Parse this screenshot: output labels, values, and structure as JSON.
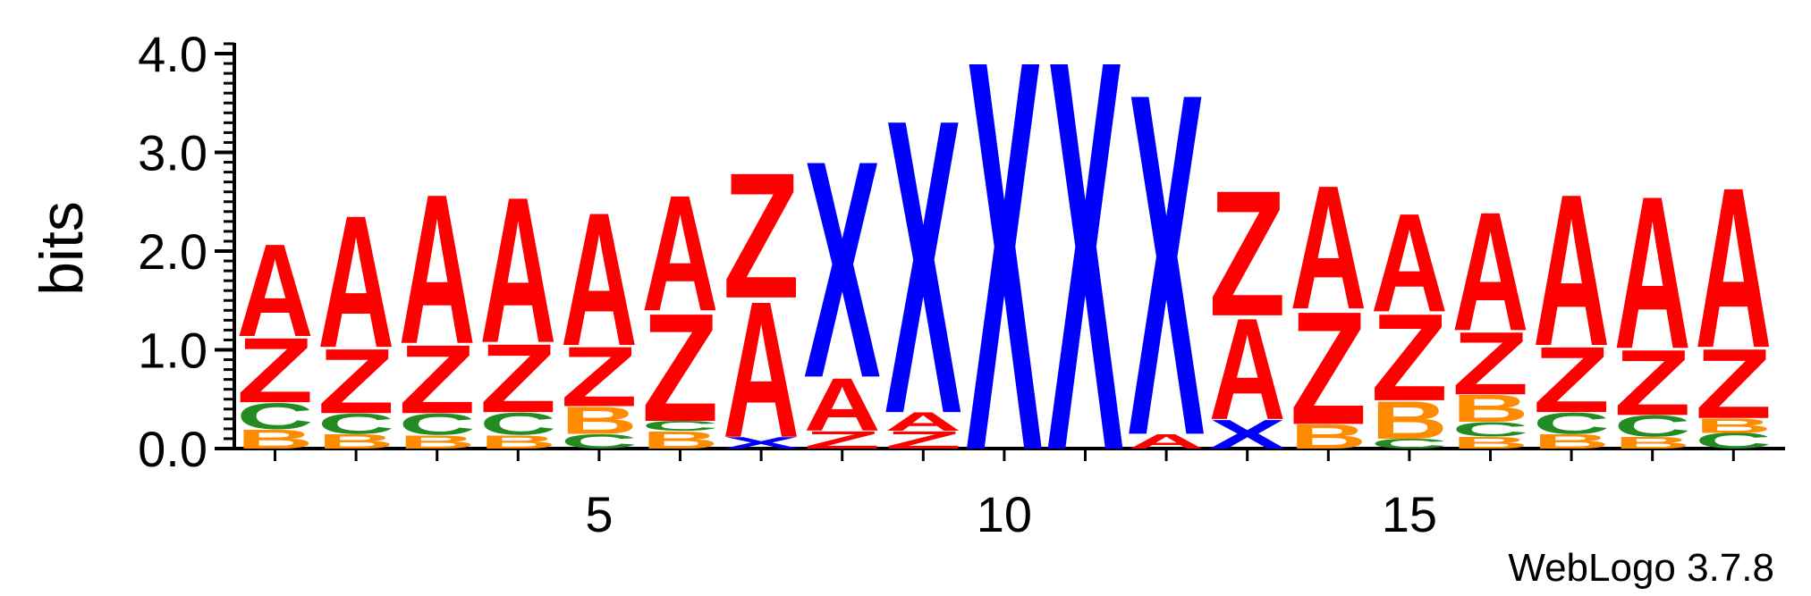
{
  "chart_data": {
    "type": "sequence-logo",
    "ylabel": "bits",
    "ylim": [
      0,
      4.0
    ],
    "y_ticks": [
      "0.0",
      "1.0",
      "2.0",
      "3.0",
      "4.0"
    ],
    "x_ticks": [
      "5",
      "10",
      "15"
    ],
    "x_tick_positions": [
      5,
      10,
      15
    ],
    "position_range": [
      1,
      19
    ],
    "colors": {
      "A": "#ff0000",
      "Z": "#ff0000",
      "X": "#0000ff",
      "C": "#228b22",
      "B": "#ff8c00"
    },
    "positions": [
      {
        "pos": 1,
        "stack": [
          [
            "B",
            0.2
          ],
          [
            "C",
            0.27
          ],
          [
            "Z",
            0.67
          ],
          [
            "A",
            0.96
          ]
        ]
      },
      {
        "pos": 2,
        "stack": [
          [
            "B",
            0.15
          ],
          [
            "C",
            0.21
          ],
          [
            "Z",
            0.67
          ],
          [
            "A",
            1.37
          ]
        ]
      },
      {
        "pos": 3,
        "stack": [
          [
            "B",
            0.14
          ],
          [
            "C",
            0.22
          ],
          [
            "Z",
            0.71
          ],
          [
            "A",
            1.55
          ]
        ]
      },
      {
        "pos": 4,
        "stack": [
          [
            "B",
            0.14
          ],
          [
            "C",
            0.23
          ],
          [
            "Z",
            0.71
          ],
          [
            "A",
            1.51
          ]
        ]
      },
      {
        "pos": 5,
        "stack": [
          [
            "C",
            0.15
          ],
          [
            "B",
            0.28
          ],
          [
            "Z",
            0.62
          ],
          [
            "A",
            1.38
          ]
        ]
      },
      {
        "pos": 6,
        "stack": [
          [
            "B",
            0.18
          ],
          [
            "C",
            0.1
          ],
          [
            "Z",
            1.12
          ],
          [
            "A",
            1.2
          ]
        ]
      },
      {
        "pos": 7,
        "stack": [
          [
            "X",
            0.12
          ],
          [
            "A",
            1.41
          ],
          [
            "Z",
            1.3
          ]
        ]
      },
      {
        "pos": 8,
        "stack": [
          [
            "Z",
            0.18
          ],
          [
            "A",
            0.55
          ],
          [
            "X",
            2.25
          ]
        ]
      },
      {
        "pos": 9,
        "stack": [
          [
            "Z",
            0.18
          ],
          [
            "A",
            0.19
          ],
          [
            "X",
            3.05
          ]
        ]
      },
      {
        "pos": 10,
        "stack": [
          [
            "X",
            4.05
          ]
        ]
      },
      {
        "pos": 11,
        "stack": [
          [
            "X",
            4.05
          ]
        ]
      },
      {
        "pos": 12,
        "stack": [
          [
            "A",
            0.15
          ],
          [
            "X",
            3.55
          ]
        ]
      },
      {
        "pos": 13,
        "stack": [
          [
            "X",
            0.3
          ],
          [
            "A",
            1.05
          ],
          [
            "Z",
            1.3
          ]
        ]
      },
      {
        "pos": 14,
        "stack": [
          [
            "B",
            0.25
          ],
          [
            "Z",
            1.17
          ],
          [
            "A",
            1.28
          ]
        ]
      },
      {
        "pos": 15,
        "stack": [
          [
            "C",
            0.1
          ],
          [
            "B",
            0.39
          ],
          [
            "Z",
            0.9
          ],
          [
            "A",
            1.02
          ]
        ]
      },
      {
        "pos": 16,
        "stack": [
          [
            "B",
            0.12
          ],
          [
            "C",
            0.15
          ],
          [
            "B",
            0.28
          ],
          [
            "Z",
            0.65
          ],
          [
            "A",
            1.23
          ]
        ]
      },
      {
        "pos": 17,
        "stack": [
          [
            "B",
            0.15
          ],
          [
            "C",
            0.22
          ],
          [
            "Z",
            0.68
          ],
          [
            "A",
            1.57
          ]
        ]
      },
      {
        "pos": 18,
        "stack": [
          [
            "B",
            0.12
          ],
          [
            "C",
            0.22
          ],
          [
            "Z",
            0.68
          ],
          [
            "A",
            1.58
          ]
        ]
      },
      {
        "pos": 19,
        "stack": [
          [
            "C",
            0.16
          ],
          [
            "B",
            0.15
          ],
          [
            "Z",
            0.72
          ],
          [
            "A",
            1.66
          ]
        ]
      }
    ]
  },
  "footer": {
    "version_label": "WebLogo 3.7.8"
  }
}
